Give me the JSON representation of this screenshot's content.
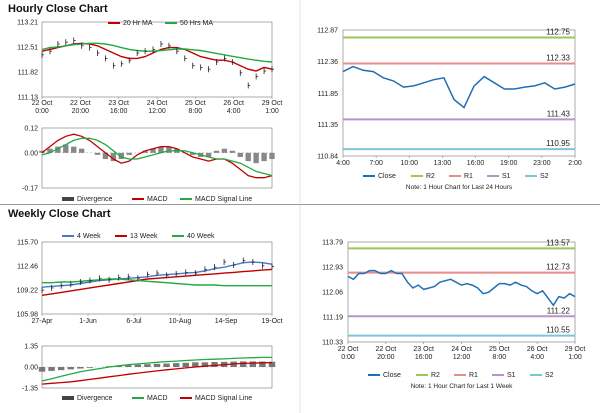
{
  "sections": {
    "hourly_title": "Hourly Close Chart",
    "weekly_title": "Weekly Close Chart"
  },
  "colors": {
    "close": "#1f6fb5",
    "ma_short": "#c00000",
    "ma_long": "#22aa44",
    "r2": "#9ac65a",
    "r1": "#e88b8b",
    "s1": "#b794c9",
    "s2": "#79c6d8",
    "bars": "#444444",
    "four_week": "#4a78c9"
  },
  "chart_data": [
    {
      "id": "hourly-price",
      "type": "line",
      "legend": [
        "20 Hr MA",
        "50 Hrs MA"
      ],
      "x_ticks": [
        "22 Oct\n0:00",
        "22 Oct\n20:00",
        "23 Oct\n16:00",
        "24 Oct\n12:00",
        "25 Oct\n8:00",
        "26 Oct\n4:00",
        "29 Oct\n1:00"
      ],
      "y_ticks": [
        "113.21",
        "112.51",
        "111.82",
        "111.13"
      ],
      "ylim": [
        111.13,
        113.21
      ],
      "series": [
        {
          "name": "20 Hr MA",
          "color": "#c00000",
          "values": [
            112.4,
            112.45,
            112.5,
            112.55,
            112.6,
            112.62,
            112.6,
            112.55,
            112.45,
            112.35,
            112.25,
            112.2,
            112.2,
            112.25,
            112.35,
            112.45,
            112.5,
            112.5,
            112.45,
            112.35,
            112.25,
            112.2,
            112.15,
            112.15,
            112.1,
            112.0,
            111.9,
            111.85,
            111.95,
            111.9
          ]
        },
        {
          "name": "50 Hrs MA",
          "color": "#22aa44",
          "values": [
            112.45,
            112.5,
            112.52,
            112.55,
            112.58,
            112.6,
            112.62,
            112.62,
            112.6,
            112.56,
            112.5,
            112.45,
            112.42,
            112.4,
            112.4,
            112.42,
            112.44,
            112.46,
            112.46,
            112.44,
            112.42,
            112.38,
            112.34,
            112.3,
            112.26,
            112.22,
            112.18,
            112.15,
            112.12,
            112.1
          ]
        },
        {
          "name": "price",
          "color": "#222222",
          "values": [
            112.3,
            112.4,
            112.6,
            112.65,
            112.7,
            112.55,
            112.5,
            112.35,
            112.2,
            112.0,
            112.05,
            112.15,
            112.35,
            112.4,
            112.45,
            112.6,
            112.55,
            112.4,
            112.2,
            112.0,
            111.95,
            111.9,
            112.1,
            112.2,
            112.1,
            111.8,
            111.45,
            111.7,
            111.85,
            111.9
          ]
        }
      ]
    },
    {
      "id": "hourly-macd",
      "type": "bar",
      "legend": [
        "Divergence",
        "MACD",
        "MACD Signal Line"
      ],
      "y_ticks": [
        "0.12",
        "0.00",
        "-0.17"
      ],
      "ylim": [
        -0.17,
        0.12
      ],
      "divergence": [
        0.01,
        0.02,
        0.03,
        0.04,
        0.03,
        0.02,
        0.0,
        -0.01,
        -0.03,
        -0.04,
        -0.03,
        -0.01,
        0.0,
        0.01,
        0.02,
        0.03,
        0.03,
        0.02,
        0.0,
        -0.01,
        -0.02,
        -0.02,
        0.01,
        0.02,
        0.01,
        -0.02,
        -0.04,
        -0.05,
        -0.04,
        -0.03
      ],
      "series": [
        {
          "name": "MACD",
          "color": "#c00000",
          "values": [
            0.0,
            0.03,
            0.06,
            0.08,
            0.09,
            0.08,
            0.06,
            0.03,
            0.0,
            -0.03,
            -0.05,
            -0.04,
            -0.01,
            0.01,
            0.02,
            0.03,
            0.03,
            0.02,
            0.0,
            -0.02,
            -0.03,
            -0.04,
            -0.03,
            -0.03,
            -0.05,
            -0.08,
            -0.11,
            -0.12,
            -0.12,
            -0.11
          ]
        },
        {
          "name": "MACD Signal Line",
          "color": "#22aa44",
          "values": [
            -0.01,
            0.0,
            0.02,
            0.04,
            0.06,
            0.07,
            0.07,
            0.06,
            0.04,
            0.01,
            -0.02,
            -0.03,
            -0.03,
            -0.02,
            -0.01,
            0.0,
            0.01,
            0.01,
            0.01,
            0.0,
            -0.01,
            -0.02,
            -0.03,
            -0.03,
            -0.04,
            -0.05,
            -0.07,
            -0.09,
            -0.1,
            -0.11
          ]
        }
      ]
    },
    {
      "id": "hourly-close",
      "type": "line",
      "x_ticks": [
        "4:00",
        "7:00",
        "10:00",
        "13:00",
        "16:00",
        "19:00",
        "23:00",
        "2:00"
      ],
      "y_ticks": [
        "112.87",
        "112.36",
        "111.85",
        "111.35",
        "110.84"
      ],
      "ylim": [
        110.84,
        112.87
      ],
      "levels": [
        {
          "name": "R2",
          "value": 112.75,
          "label": "112.75",
          "color": "#9ac65a"
        },
        {
          "name": "R1",
          "value": 112.33,
          "label": "112.33",
          "color": "#e88b8b"
        },
        {
          "name": "S1",
          "value": 111.43,
          "label": "111.43",
          "color": "#b794c9"
        },
        {
          "name": "S2",
          "value": 110.95,
          "label": "110.95",
          "color": "#79c6d8"
        }
      ],
      "series": [
        {
          "name": "Close",
          "color": "#1f6fb5",
          "values": [
            112.2,
            112.28,
            112.22,
            112.2,
            112.1,
            112.05,
            111.95,
            111.97,
            112.02,
            112.07,
            112.1,
            111.75,
            111.62,
            111.97,
            112.12,
            112.02,
            111.92,
            111.92,
            111.95,
            111.97,
            112.02,
            111.92,
            111.95,
            112.0
          ]
        }
      ],
      "legend": [
        "Close",
        "R2",
        "R1",
        "S1",
        "S2"
      ],
      "note": "Note: 1 Hour Chart for Last 24 Hours"
    },
    {
      "id": "weekly-price",
      "type": "line",
      "legend": [
        "4 Week",
        "13 Week",
        "40 Week"
      ],
      "x_ticks": [
        "27-Apr",
        "1-Jun",
        "6-Jul",
        "10-Aug",
        "14-Sep",
        "19-Oct"
      ],
      "y_ticks": [
        "115.70",
        "112.46",
        "109.22",
        "105.98"
      ],
      "ylim": [
        105.98,
        115.7
      ],
      "series": [
        {
          "name": "4 Week",
          "color": "#4a78c9",
          "values": [
            109.6,
            109.7,
            109.8,
            109.9,
            110.1,
            110.3,
            110.5,
            110.6,
            110.7,
            110.8,
            110.9,
            111.0,
            111.2,
            111.3,
            111.4,
            111.5,
            111.6,
            111.8,
            112.1,
            112.3,
            112.6,
            112.9,
            113.0,
            112.9,
            112.7
          ]
        },
        {
          "name": "13 Week",
          "color": "#c00000",
          "values": [
            108.5,
            108.7,
            108.9,
            109.1,
            109.3,
            109.5,
            109.7,
            109.9,
            110.1,
            110.3,
            110.5,
            110.7,
            110.8,
            110.9,
            111.0,
            111.1,
            111.2,
            111.3,
            111.4,
            111.5,
            111.6,
            111.7,
            111.8,
            111.9,
            112.0
          ]
        },
        {
          "name": "40 Week",
          "color": "#22aa44",
          "values": [
            110.2,
            110.2,
            110.3,
            110.3,
            110.4,
            110.5,
            110.6,
            110.7,
            110.7,
            110.6,
            110.5,
            110.4,
            110.3,
            110.2,
            110.1,
            110.0,
            109.9,
            109.9,
            109.9,
            109.8,
            109.8,
            109.8,
            109.8,
            109.8,
            109.8
          ]
        },
        {
          "name": "price",
          "color": "#222222",
          "values": [
            109.2,
            109.5,
            109.8,
            110.0,
            110.3,
            110.5,
            110.8,
            110.6,
            110.9,
            111.0,
            110.8,
            111.3,
            111.5,
            111.2,
            111.4,
            111.6,
            111.5,
            112.0,
            112.3,
            113.0,
            112.6,
            113.2,
            113.0,
            112.5,
            112.4
          ]
        }
      ]
    },
    {
      "id": "weekly-macd",
      "type": "bar",
      "legend": [
        "Divergence",
        "MACD",
        "MACD Signal Line"
      ],
      "y_ticks": [
        "1.35",
        "0.00",
        "-1.35"
      ],
      "ylim": [
        -1.35,
        1.35
      ],
      "divergence": [
        -0.3,
        -0.25,
        -0.2,
        -0.15,
        -0.1,
        -0.05,
        0.0,
        0.05,
        0.1,
        0.12,
        0.15,
        0.18,
        0.2,
        0.22,
        0.25,
        0.27,
        0.3,
        0.3,
        0.32,
        0.33,
        0.35,
        0.36,
        0.36,
        0.35,
        0.34
      ],
      "series": [
        {
          "name": "MACD",
          "color": "#22aa44",
          "values": [
            -0.9,
            -0.75,
            -0.6,
            -0.45,
            -0.3,
            -0.2,
            -0.1,
            0.0,
            0.08,
            0.15,
            0.2,
            0.25,
            0.3,
            0.35,
            0.38,
            0.42,
            0.45,
            0.48,
            0.5,
            0.52,
            0.55,
            0.58,
            0.6,
            0.62,
            0.62
          ]
        },
        {
          "name": "MACD Signal Line",
          "color": "#c00000",
          "values": [
            -1.1,
            -1.05,
            -1.0,
            -0.95,
            -0.88,
            -0.8,
            -0.72,
            -0.63,
            -0.55,
            -0.47,
            -0.39,
            -0.32,
            -0.25,
            -0.18,
            -0.12,
            -0.06,
            0.0,
            0.05,
            0.1,
            0.15,
            0.2,
            0.23,
            0.25,
            0.27,
            0.28
          ]
        }
      ]
    },
    {
      "id": "weekly-close",
      "type": "line",
      "x_ticks": [
        "22 Oct\n0:00",
        "22 Oct\n20:00",
        "23 Oct\n16:00",
        "24 Oct\n12:00",
        "25 Oct\n8:00",
        "26 Oct\n4:00",
        "29 Oct\n1:00"
      ],
      "y_ticks": [
        "113.79",
        "112.93",
        "112.06",
        "111.19",
        "110.33"
      ],
      "ylim": [
        110.33,
        113.79
      ],
      "levels": [
        {
          "name": "R2",
          "value": 113.57,
          "label": "113.57",
          "color": "#9ac65a"
        },
        {
          "name": "R1",
          "value": 112.73,
          "label": "112.73",
          "color": "#e88b8b"
        },
        {
          "name": "S1",
          "value": 111.22,
          "label": "111.22",
          "color": "#b794c9"
        },
        {
          "name": "S2",
          "value": 110.55,
          "label": "110.55",
          "color": "#79c6d8"
        }
      ],
      "series": [
        {
          "name": "Close",
          "color": "#1f6fb5",
          "values": [
            112.6,
            112.5,
            112.7,
            112.7,
            112.8,
            112.8,
            112.7,
            112.7,
            112.8,
            112.7,
            112.7,
            112.4,
            112.2,
            112.3,
            112.15,
            112.2,
            112.25,
            112.4,
            112.45,
            112.5,
            112.4,
            112.3,
            112.35,
            112.3,
            112.2,
            112.0,
            112.05,
            112.2,
            112.35,
            112.35,
            112.3,
            112.4,
            112.3,
            112.25,
            112.1,
            112.0,
            112.1,
            111.85,
            111.6,
            111.9,
            111.85,
            112.0,
            111.9
          ]
        }
      ],
      "legend": [
        "Close",
        "R2",
        "R1",
        "S1",
        "S2"
      ],
      "note": "Note: 1 Hour Chart for Last 1 Week"
    }
  ]
}
